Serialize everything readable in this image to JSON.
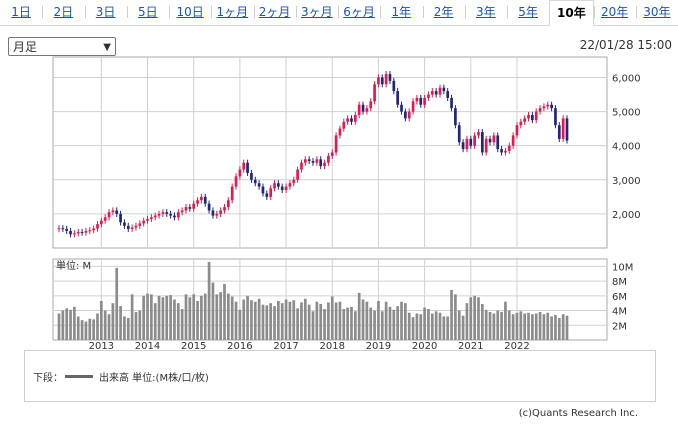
{
  "tabs": [
    {
      "label": "1日",
      "active": false
    },
    {
      "label": "2日",
      "active": false
    },
    {
      "label": "3日",
      "active": false
    },
    {
      "label": "5日",
      "active": false
    },
    {
      "label": "10日",
      "active": false
    },
    {
      "label": "1ヶ月",
      "active": false
    },
    {
      "label": "2ヶ月",
      "active": false
    },
    {
      "label": "3ヶ月",
      "active": false
    },
    {
      "label": "6ヶ月",
      "active": false
    },
    {
      "label": "1年",
      "active": false
    },
    {
      "label": "2年",
      "active": false
    },
    {
      "label": "3年",
      "active": false
    },
    {
      "label": "5年",
      "active": false
    },
    {
      "label": "10年",
      "active": true
    },
    {
      "label": "20年",
      "active": false
    },
    {
      "label": "30年",
      "active": false
    }
  ],
  "period_select": {
    "value": "月足"
  },
  "datetime": "22/01/28 15:00",
  "legend": {
    "prefix": "下段：",
    "label": "出来高 単位:(M株/口/枚)"
  },
  "copyright": "(c)Quants Research Inc.",
  "colors": {
    "up": "#e8174a",
    "down": "#1f2680",
    "volume": "#8c8c8c",
    "grid": "#d0d0d0"
  },
  "chart_data": [
    {
      "type": "candlestick",
      "title": "",
      "ylim": [
        1000,
        6600
      ],
      "y_ticks": [
        "2,000",
        "3,000",
        "4,000",
        "5,000",
        "6,000"
      ],
      "x_ticks": [
        "2013",
        "2014",
        "2015",
        "2016",
        "2017",
        "2018",
        "2019",
        "2020",
        "2021",
        "2022"
      ],
      "grid": true,
      "close": [
        1580,
        1560,
        1500,
        1400,
        1430,
        1470,
        1450,
        1500,
        1520,
        1570,
        1700,
        1800,
        1900,
        2050,
        2100,
        2000,
        1750,
        1650,
        1560,
        1600,
        1650,
        1720,
        1800,
        1850,
        1900,
        1950,
        2000,
        2050,
        2000,
        1950,
        1900,
        2050,
        2100,
        2200,
        2150,
        2300,
        2400,
        2500,
        2300,
        2100,
        1950,
        2000,
        2100,
        2200,
        2400,
        2800,
        3100,
        3300,
        3500,
        3200,
        3000,
        2900,
        2800,
        2600,
        2500,
        2750,
        2900,
        2800,
        2700,
        2800,
        2900,
        3000,
        3300,
        3500,
        3600,
        3550,
        3500,
        3600,
        3400,
        3500,
        3700,
        3800,
        4300,
        4500,
        4700,
        4800,
        4700,
        4900,
        5200,
        5000,
        5100,
        5300,
        5800,
        6000,
        5800,
        6100,
        5900,
        5600,
        5200,
        5000,
        4800,
        5000,
        5300,
        5400,
        5200,
        5400,
        5500,
        5600,
        5500,
        5700,
        5600,
        5400,
        5100,
        4600,
        4100,
        3900,
        4200,
        4000,
        4300,
        4400,
        3800,
        4200,
        4100,
        4300,
        3900,
        3800,
        3850,
        4000,
        4300,
        4600,
        4700,
        4800,
        4900,
        4750,
        5000,
        5100,
        5150,
        5200,
        5100,
        4600,
        4200,
        4800,
        4150
      ],
      "volume_ylim": [
        0,
        11
      ],
      "volume_ticks": [
        "10M",
        "8M",
        "6M",
        "4M",
        "2M"
      ],
      "volume": [
        3.6,
        4.0,
        4.3,
        4.1,
        4.5,
        3.2,
        2.7,
        2.5,
        2.9,
        2.8,
        3.6,
        5.3,
        4.0,
        3.5,
        5.0,
        9.8,
        4.6,
        3.2,
        3.0,
        6.2,
        3.8,
        4.0,
        6.0,
        6.3,
        6.2,
        5.0,
        6.0,
        5.8,
        6.0,
        6.1,
        5.5,
        5.0,
        4.2,
        6.2,
        5.8,
        6.2,
        5.3,
        6.0,
        6.3,
        10.6,
        7.8,
        6.2,
        6.5,
        7.6,
        6.3,
        5.9,
        5.2,
        4.1,
        5.5,
        6.0,
        5.4,
        5.2,
        5.6,
        4.8,
        4.7,
        5.0,
        4.6,
        5.3,
        5.0,
        5.5,
        5.2,
        5.4,
        4.3,
        5.1,
        5.6,
        4.8,
        3.9,
        5.2,
        4.9,
        4.2,
        5.1,
        5.9,
        5.1,
        5.2,
        4.2,
        4.4,
        4.5,
        3.9,
        6.4,
        5.5,
        5.2,
        4.4,
        4.0,
        5.3,
        3.9,
        5.2,
        4.5,
        4.1,
        4.6,
        5.2,
        5.0,
        3.7,
        3.1,
        3.6,
        3.5,
        4.4,
        4.2,
        3.6,
        3.9,
        3.7,
        3.2,
        3.2,
        6.8,
        6.2,
        4.0,
        3.3,
        5.0,
        5.8,
        6.0,
        5.8,
        4.9,
        4.1,
        3.8,
        3.6,
        4.0,
        3.8,
        5.2,
        4.0,
        3.5,
        3.7,
        3.9,
        3.6,
        3.7,
        3.5,
        3.6,
        3.8,
        3.5,
        3.7,
        3.2,
        3.4,
        3.0,
        3.5,
        3.3
      ]
    }
  ]
}
